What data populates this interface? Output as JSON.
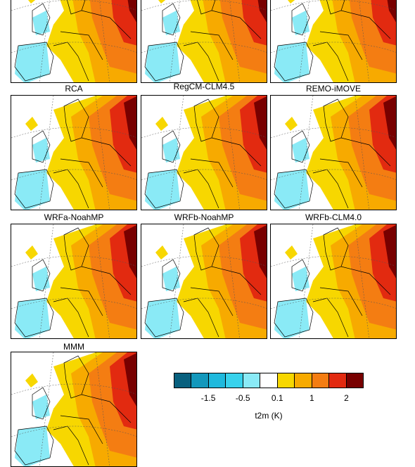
{
  "panels": [
    {
      "label": "RCA"
    },
    {
      "label": "RegCM-CLM4.5"
    },
    {
      "label": "REMO-iMOVE"
    },
    {
      "label": "WRFa-NoahMP"
    },
    {
      "label": "WRFb-NoahMP"
    },
    {
      "label": "WRFb-CLM4.0"
    },
    {
      "label": "MMM"
    }
  ],
  "colorbar": {
    "colors": [
      "#08607e",
      "#1398bc",
      "#1fb9dd",
      "#38d2ec",
      "#8aeaf6",
      "#ffffff",
      "#f7d700",
      "#f7aa00",
      "#f47d12",
      "#e22a10",
      "#780000"
    ],
    "ticks": [
      -1.5,
      -0.5,
      0.1,
      1,
      2
    ],
    "label": "t2m (K)"
  }
}
